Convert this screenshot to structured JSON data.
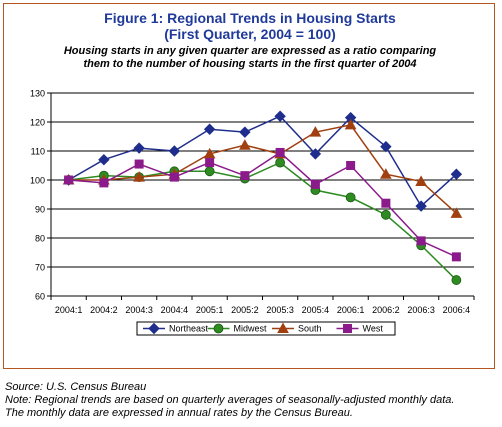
{
  "figure": {
    "title": "Figure 1: Regional Trends in Housing Starts",
    "title_line2": "(First Quarter, 2004 = 100)",
    "subtitle_line1": "Housing starts in any given quarter are expressed as a ratio comparing",
    "subtitle_line2": "them to the  number of housing starts in the first quarter of 2004"
  },
  "footnotes": {
    "source": "Source: U.S. Census Bureau",
    "note_line1": "Note: Regional trends are based on quarterly averages of seasonally-adjusted monthly data.",
    "note_line2": "The monthly data are expressed in annual rates by the Census Bureau."
  },
  "chart_data": {
    "type": "line",
    "title": "Figure 1: Regional Trends in Housing Starts",
    "categories": [
      "2004:1",
      "2004:2",
      "2004:3",
      "2004:4",
      "2005:1",
      "2005:2",
      "2005:3",
      "2005:4",
      "2006:1",
      "2006:2",
      "2006:3",
      "2006:4"
    ],
    "series": [
      {
        "name": "Northeast",
        "color": "#1f2e8c",
        "marker": "diamond",
        "values": [
          100,
          107,
          111,
          110,
          117.5,
          116.5,
          122,
          109,
          121.5,
          111.5,
          91,
          102
        ]
      },
      {
        "name": "Midwest",
        "color": "#2e8b22",
        "marker": "circle",
        "values": [
          100,
          101.5,
          101,
          103,
          103,
          100.5,
          106,
          96.5,
          94,
          88,
          77.5,
          65.5
        ]
      },
      {
        "name": "South",
        "color": "#a04010",
        "marker": "triangle",
        "values": [
          100,
          100,
          101,
          102,
          109,
          112,
          109,
          116.5,
          119,
          102,
          99.5,
          88.5
        ]
      },
      {
        "name": "West",
        "color": "#8b1a8b",
        "marker": "square",
        "values": [
          100,
          99,
          105.5,
          101,
          106,
          101.5,
          109.5,
          98.5,
          105,
          92,
          79,
          73.5
        ]
      }
    ],
    "ylim": [
      60,
      130
    ],
    "yticks": [
      60,
      70,
      80,
      90,
      100,
      110,
      120,
      130
    ],
    "grid": true,
    "legend": "bottom"
  }
}
